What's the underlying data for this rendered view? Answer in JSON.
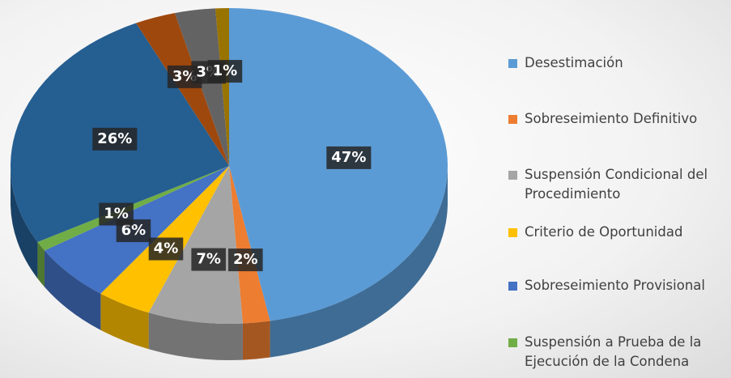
{
  "chart_data": {
    "type": "pie",
    "categories": [
      "Desestimación",
      "Sobreseimiento Definitivo",
      "Suspensión Condicional del Procedimiento",
      "Criterio de Oportunidad",
      "Sobreseimiento Provisional",
      "Suspensión a Prueba de la Ejecución de la Condena",
      null,
      null,
      null,
      null
    ],
    "values": [
      47,
      2,
      7,
      4,
      6,
      1,
      26,
      3,
      3,
      1
    ],
    "value_labels": [
      "47%",
      "2%",
      "7%",
      "4%",
      "6%",
      "1%",
      "26%",
      "3%",
      "3%",
      "1%"
    ],
    "colors": [
      "#5B9BD5",
      "#ED7D31",
      "#A5A5A5",
      "#FFC000",
      "#4472C4",
      "#70AD47",
      "#255E91",
      "#9E480E",
      "#636363",
      "#997300"
    ],
    "legend": "right"
  }
}
